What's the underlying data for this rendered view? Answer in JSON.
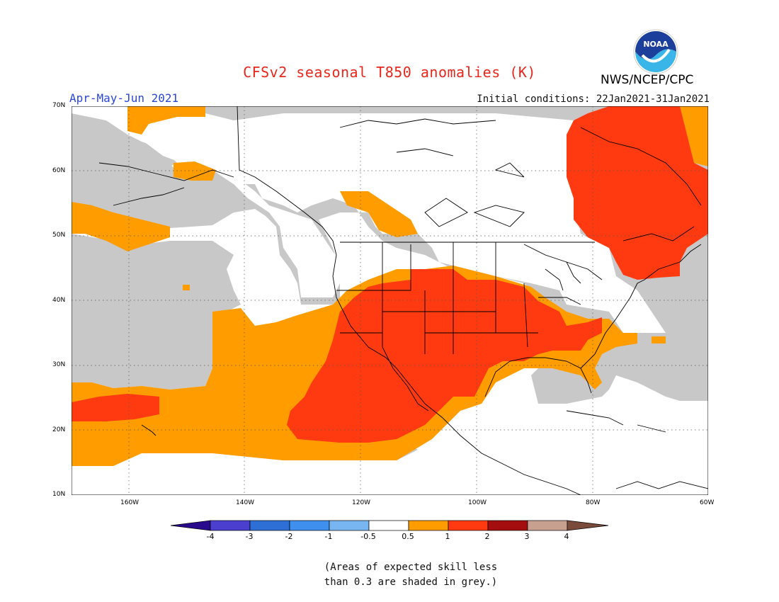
{
  "title": "CFSv2 seasonal T850 anomalies (K)",
  "period": "Apr-May-Jun 2021",
  "initial_conditions": "Initial conditions: 22Jan2021-31Jan2021",
  "organization": "NWS/NCEP/CPC",
  "logo_text": "NOAA",
  "lat_labels": [
    "70N",
    "60N",
    "50N",
    "40N",
    "30N",
    "20N",
    "10N"
  ],
  "lon_labels": [
    "160W",
    "140W",
    "120W",
    "100W",
    "80W",
    "60W"
  ],
  "colorbar": {
    "ticks": [
      "-4",
      "-3",
      "-2",
      "-1",
      "-0.5",
      "0.5",
      "1",
      "2",
      "3",
      "4"
    ],
    "colors": [
      "#2a0a8c",
      "#4b3fcf",
      "#2e6fd6",
      "#3f8fef",
      "#78b6f2",
      "#ffffff",
      "#ff9c00",
      "#ff3a10",
      "#a50e0e",
      "#c8a090",
      "#7a4a3a"
    ]
  },
  "note": [
    "(Areas of expected skill less",
    "than 0.3 are shaded in grey.)"
  ],
  "legend_colors": {
    "grey": "#c8c8c8",
    "orange": "#ff9c00",
    "red": "#ff3a10",
    "white": "#ffffff"
  }
}
